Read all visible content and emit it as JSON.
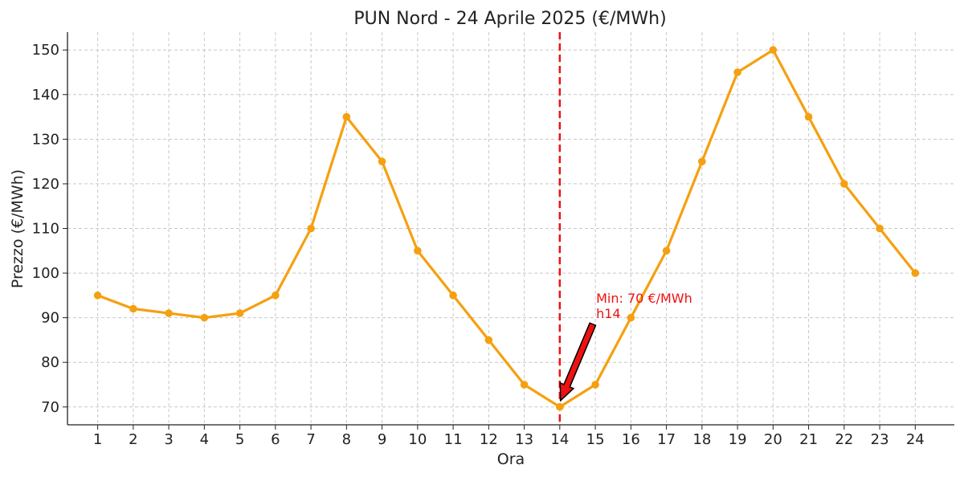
{
  "chart_data": {
    "type": "line",
    "title": "PUN Nord - 24 Aprile 2025 (€/MWh)",
    "xlabel": "Ora",
    "ylabel": "Prezzo (€/MWh)",
    "x": [
      1,
      2,
      3,
      4,
      5,
      6,
      7,
      8,
      9,
      10,
      11,
      12,
      13,
      14,
      15,
      16,
      17,
      18,
      19,
      20,
      21,
      22,
      23,
      24
    ],
    "series": [
      {
        "values": [
          95,
          92,
          91,
          90,
          91,
          95,
          110,
          135,
          125,
          105,
          95,
          85,
          75,
          70,
          75,
          90,
          105,
          125,
          145,
          150,
          135,
          120,
          110,
          100
        ]
      }
    ],
    "xlim": [
      0.15,
      25.1
    ],
    "ylim": [
      66,
      154
    ],
    "yticks": [
      70,
      80,
      90,
      100,
      110,
      120,
      130,
      140,
      150
    ],
    "grid": true,
    "line_color": "#f5a010",
    "marker": "circle",
    "annotations": {
      "vline": {
        "x": 14,
        "color": "#ee1111",
        "style": "dashed"
      },
      "min_text": "Min: 70 €/MWh\nh14",
      "min_point": {
        "x": 14,
        "y": 70
      },
      "arrow_color": "#ee1111"
    }
  }
}
